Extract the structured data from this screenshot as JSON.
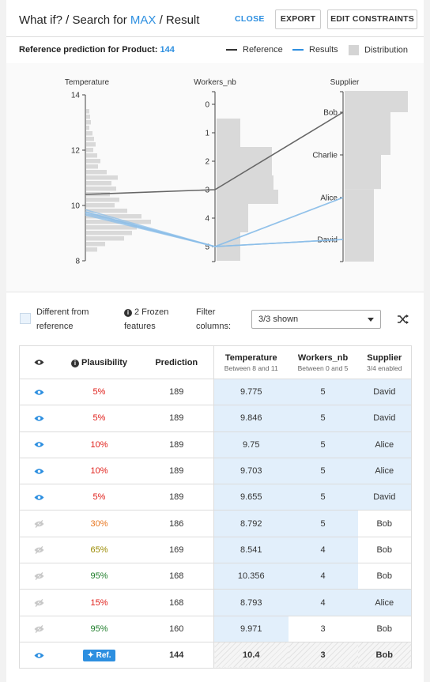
{
  "header": {
    "title_prefix": "What if? / Search for ",
    "title_accent": "MAX",
    "title_suffix": " / Result",
    "close_label": "CLOSE",
    "export_label": "EXPORT",
    "edit_label": "EDIT CONSTRAINTS"
  },
  "reference": {
    "label": "Reference prediction for Product:",
    "value": "144"
  },
  "legend": {
    "reference": "Reference",
    "results": "Results",
    "distribution": "Distribution"
  },
  "colors": {
    "accent": "#2d8fe0",
    "reference_line": "#666666",
    "results_line": "#8bbde8",
    "distribution": "#d9d9d9",
    "cell_highlight": "#e2effb",
    "red": "#e0201b",
    "orange": "#e8761f",
    "olive": "#9a8a00",
    "green": "#1e7d2a"
  },
  "chart_data": {
    "type": "parallel-coordinates",
    "axes": [
      {
        "name": "Temperature",
        "ticks": [
          "14",
          "12",
          "10",
          "8"
        ],
        "range": [
          8,
          14.3
        ]
      },
      {
        "name": "Workers_nb",
        "ticks": [
          "0",
          "1",
          "2",
          "3",
          "4",
          "5"
        ],
        "range": [
          0,
          5.5
        ]
      },
      {
        "name": "Supplier",
        "categories": [
          "Bob",
          "Charlie",
          "Alice",
          "David"
        ]
      }
    ],
    "reference": {
      "Temperature": 10.4,
      "Workers_nb": 3,
      "Supplier": "Bob"
    },
    "results": [
      {
        "Temperature": 9.775,
        "Workers_nb": 5,
        "Supplier": "David"
      },
      {
        "Temperature": 9.846,
        "Workers_nb": 5,
        "Supplier": "David"
      },
      {
        "Temperature": 9.75,
        "Workers_nb": 5,
        "Supplier": "Alice"
      },
      {
        "Temperature": 9.703,
        "Workers_nb": 5,
        "Supplier": "Alice"
      },
      {
        "Temperature": 9.655,
        "Workers_nb": 5,
        "Supplier": "David"
      }
    ],
    "temperature_distribution": [
      {
        "y": 13.4,
        "w": 4
      },
      {
        "y": 13.2,
        "w": 5
      },
      {
        "y": 13.0,
        "w": 6
      },
      {
        "y": 12.8,
        "w": 4
      },
      {
        "y": 12.6,
        "w": 8
      },
      {
        "y": 12.4,
        "w": 10
      },
      {
        "y": 12.2,
        "w": 12
      },
      {
        "y": 12.0,
        "w": 9
      },
      {
        "y": 11.8,
        "w": 14
      },
      {
        "y": 11.6,
        "w": 18
      },
      {
        "y": 11.4,
        "w": 15
      },
      {
        "y": 11.2,
        "w": 26
      },
      {
        "y": 11.0,
        "w": 40
      },
      {
        "y": 10.8,
        "w": 32
      },
      {
        "y": 10.6,
        "w": 38
      },
      {
        "y": 10.4,
        "w": 30
      },
      {
        "y": 10.2,
        "w": 42
      },
      {
        "y": 10.0,
        "w": 36
      },
      {
        "y": 9.8,
        "w": 52
      },
      {
        "y": 9.6,
        "w": 70
      },
      {
        "y": 9.4,
        "w": 82
      },
      {
        "y": 9.2,
        "w": 64
      },
      {
        "y": 9.0,
        "w": 58
      },
      {
        "y": 8.8,
        "w": 48
      },
      {
        "y": 8.6,
        "w": 24
      },
      {
        "y": 8.4,
        "w": 14
      }
    ],
    "workers_distribution": [
      {
        "from": 0.5,
        "to": 1.5,
        "w": 30
      },
      {
        "from": 1.5,
        "to": 2.5,
        "w": 70
      },
      {
        "from": 2.5,
        "to": 3.0,
        "w": 72
      },
      {
        "from": 3.0,
        "to": 3.5,
        "w": 78
      },
      {
        "from": 3.5,
        "to": 4.5,
        "w": 40
      },
      {
        "from": 4.5,
        "to": 5.5,
        "w": 30
      }
    ],
    "supplier_distribution": [
      {
        "from": 0,
        "to": 0.5,
        "w": 80
      },
      {
        "from": 0.5,
        "to": 1.5,
        "w": 58
      },
      {
        "from": 1.5,
        "to": 2.3,
        "w": 46
      },
      {
        "from": 2.3,
        "to": 3.5,
        "w": 0
      }
    ]
  },
  "controls": {
    "different_label_line1": "Different from",
    "different_label_line2": "reference",
    "frozen_line1": "2 Frozen",
    "frozen_line2": "features",
    "filter_line1": "Filter",
    "filter_line2": "columns:",
    "filter_value": "3/3 shown"
  },
  "table": {
    "headers": {
      "plausibility": "Plausibility",
      "prediction": "Prediction",
      "temperature": "Temperature",
      "temperature_sub": "Between 8 and 11",
      "workers": "Workers_nb",
      "workers_sub": "Between 0 and 5",
      "supplier": "Supplier",
      "supplier_sub": "3/4 enabled"
    },
    "rows": [
      {
        "visible": true,
        "plausibility": "5%",
        "level": "red",
        "prediction": "189",
        "temperature": "9.775",
        "workers": "5",
        "supplier": "David",
        "hl_workers": true,
        "hl_supplier": true
      },
      {
        "visible": true,
        "plausibility": "5%",
        "level": "red",
        "prediction": "189",
        "temperature": "9.846",
        "workers": "5",
        "supplier": "David",
        "hl_workers": true,
        "hl_supplier": true
      },
      {
        "visible": true,
        "plausibility": "10%",
        "level": "red",
        "prediction": "189",
        "temperature": "9.75",
        "workers": "5",
        "supplier": "Alice",
        "hl_workers": true,
        "hl_supplier": true
      },
      {
        "visible": true,
        "plausibility": "10%",
        "level": "red",
        "prediction": "189",
        "temperature": "9.703",
        "workers": "5",
        "supplier": "Alice",
        "hl_workers": true,
        "hl_supplier": true
      },
      {
        "visible": true,
        "plausibility": "5%",
        "level": "red",
        "prediction": "189",
        "temperature": "9.655",
        "workers": "5",
        "supplier": "David",
        "hl_workers": true,
        "hl_supplier": true
      },
      {
        "visible": false,
        "plausibility": "30%",
        "level": "orange",
        "prediction": "186",
        "temperature": "8.792",
        "workers": "5",
        "supplier": "Bob",
        "hl_workers": true,
        "hl_supplier": false
      },
      {
        "visible": false,
        "plausibility": "65%",
        "level": "olive",
        "prediction": "169",
        "temperature": "8.541",
        "workers": "4",
        "supplier": "Bob",
        "hl_workers": true,
        "hl_supplier": false
      },
      {
        "visible": false,
        "plausibility": "95%",
        "level": "green",
        "prediction": "168",
        "temperature": "10.356",
        "workers": "4",
        "supplier": "Bob",
        "hl_workers": true,
        "hl_supplier": false
      },
      {
        "visible": false,
        "plausibility": "15%",
        "level": "red",
        "prediction": "168",
        "temperature": "8.793",
        "workers": "4",
        "supplier": "Alice",
        "hl_workers": true,
        "hl_supplier": true
      },
      {
        "visible": false,
        "plausibility": "95%",
        "level": "green",
        "prediction": "160",
        "temperature": "9.971",
        "workers": "3",
        "supplier": "Bob",
        "hl_workers": false,
        "hl_supplier": false
      }
    ],
    "reference_row": {
      "badge": "Ref.",
      "prediction": "144",
      "temperature": "10.4",
      "workers": "3",
      "supplier": "Bob"
    }
  }
}
